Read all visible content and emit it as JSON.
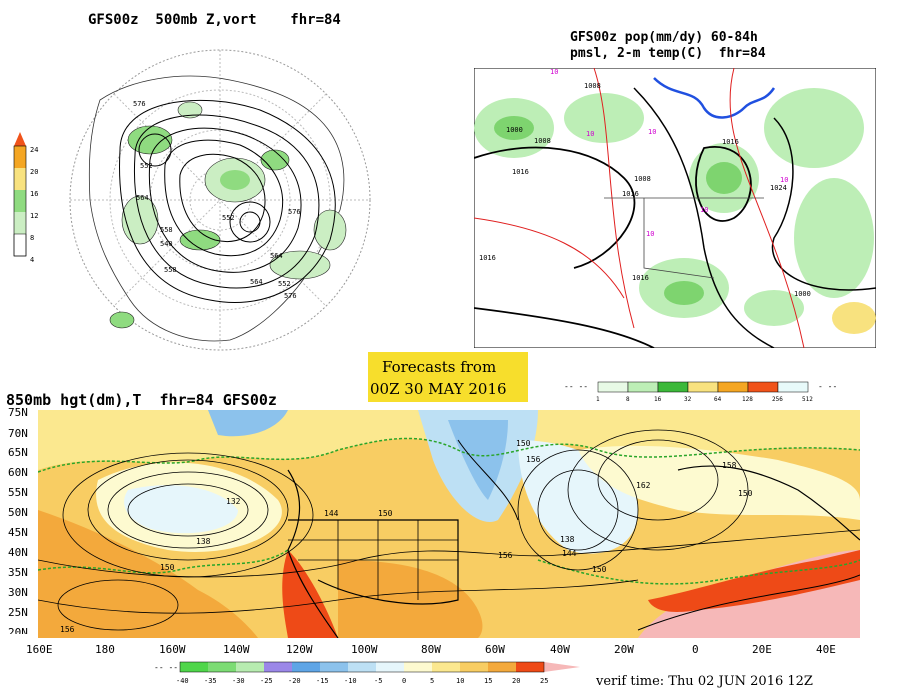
{
  "panel_500mb": {
    "title": "GFS00z  500mb Z,vort    fhr=84",
    "colorbar_ticks": [
      "24",
      "20",
      "16",
      "12",
      "8",
      "4"
    ],
    "contour_labels": [
      "576",
      "552",
      "564",
      "558",
      "540",
      "552",
      "576",
      "564",
      "558",
      "564",
      "552",
      "576"
    ]
  },
  "panel_precip": {
    "title_line1": "GFS00z pop(mm/dy) 60-84h",
    "title_line2": "pmsl, 2-m temp(C)  fhr=84",
    "isobar_labels": [
      "1008",
      "1008",
      "1000",
      "1016",
      "1008",
      "1016",
      "1016",
      "1024",
      "1016",
      "1016",
      "1000"
    ],
    "temp_labels": [
      "10",
      "10",
      "10",
      "10",
      "10",
      "10"
    ],
    "legend_ticks": [
      "1",
      "8",
      "16",
      "32",
      "64",
      "128",
      "256",
      "512"
    ]
  },
  "forecast_box": {
    "line1": "Forecasts from",
    "line2": "00Z 30 MAY 2016"
  },
  "panel_850mb": {
    "title": "850mb hgt(dm),T  fhr=84 GFS00z",
    "lat_labels": [
      "75N",
      "70N",
      "65N",
      "60N",
      "55N",
      "50N",
      "45N",
      "40N",
      "35N",
      "30N",
      "25N",
      "20N"
    ],
    "lon_labels": [
      "160E",
      "180",
      "160W",
      "140W",
      "120W",
      "100W",
      "80W",
      "60W",
      "40W",
      "20W",
      "0",
      "20E",
      "40E"
    ],
    "contour_labels": [
      "132",
      "138",
      "150",
      "144",
      "150",
      "156",
      "150",
      "156",
      "138",
      "144",
      "150",
      "162",
      "158",
      "150",
      "156"
    ],
    "legend_ticks": [
      "-40",
      "-35",
      "-30",
      "-25",
      "-20",
      "-15",
      "-10",
      "-5",
      "0",
      "5",
      "10",
      "15",
      "20",
      "25"
    ]
  },
  "verif_time": "verif time: Thu 02 JUN 2016 12Z",
  "colors": {
    "pop_scale": [
      "#e8fae6",
      "#bdeeb6",
      "#7ed46f",
      "#3cb83a",
      "#f8e27f",
      "#f4a623",
      "#f0531a",
      "#e8fafa"
    ],
    "temp_scale": [
      "#4fd64a",
      "#7cdc74",
      "#b7ecb0",
      "#9b87e8",
      "#5fa5e6",
      "#8cc2ec",
      "#bde0f4",
      "#e6f6fb",
      "#fdfad0",
      "#fbe88f",
      "#f8cd63",
      "#f3a93c",
      "#ee4a17",
      "#f6b8b8"
    ],
    "vort_scale": [
      "#ffffff",
      "#cbeec3",
      "#8fdb80",
      "#f8e27f",
      "#f4a623",
      "#f0531a"
    ],
    "forecast_box_bg": "#f7de2c"
  }
}
